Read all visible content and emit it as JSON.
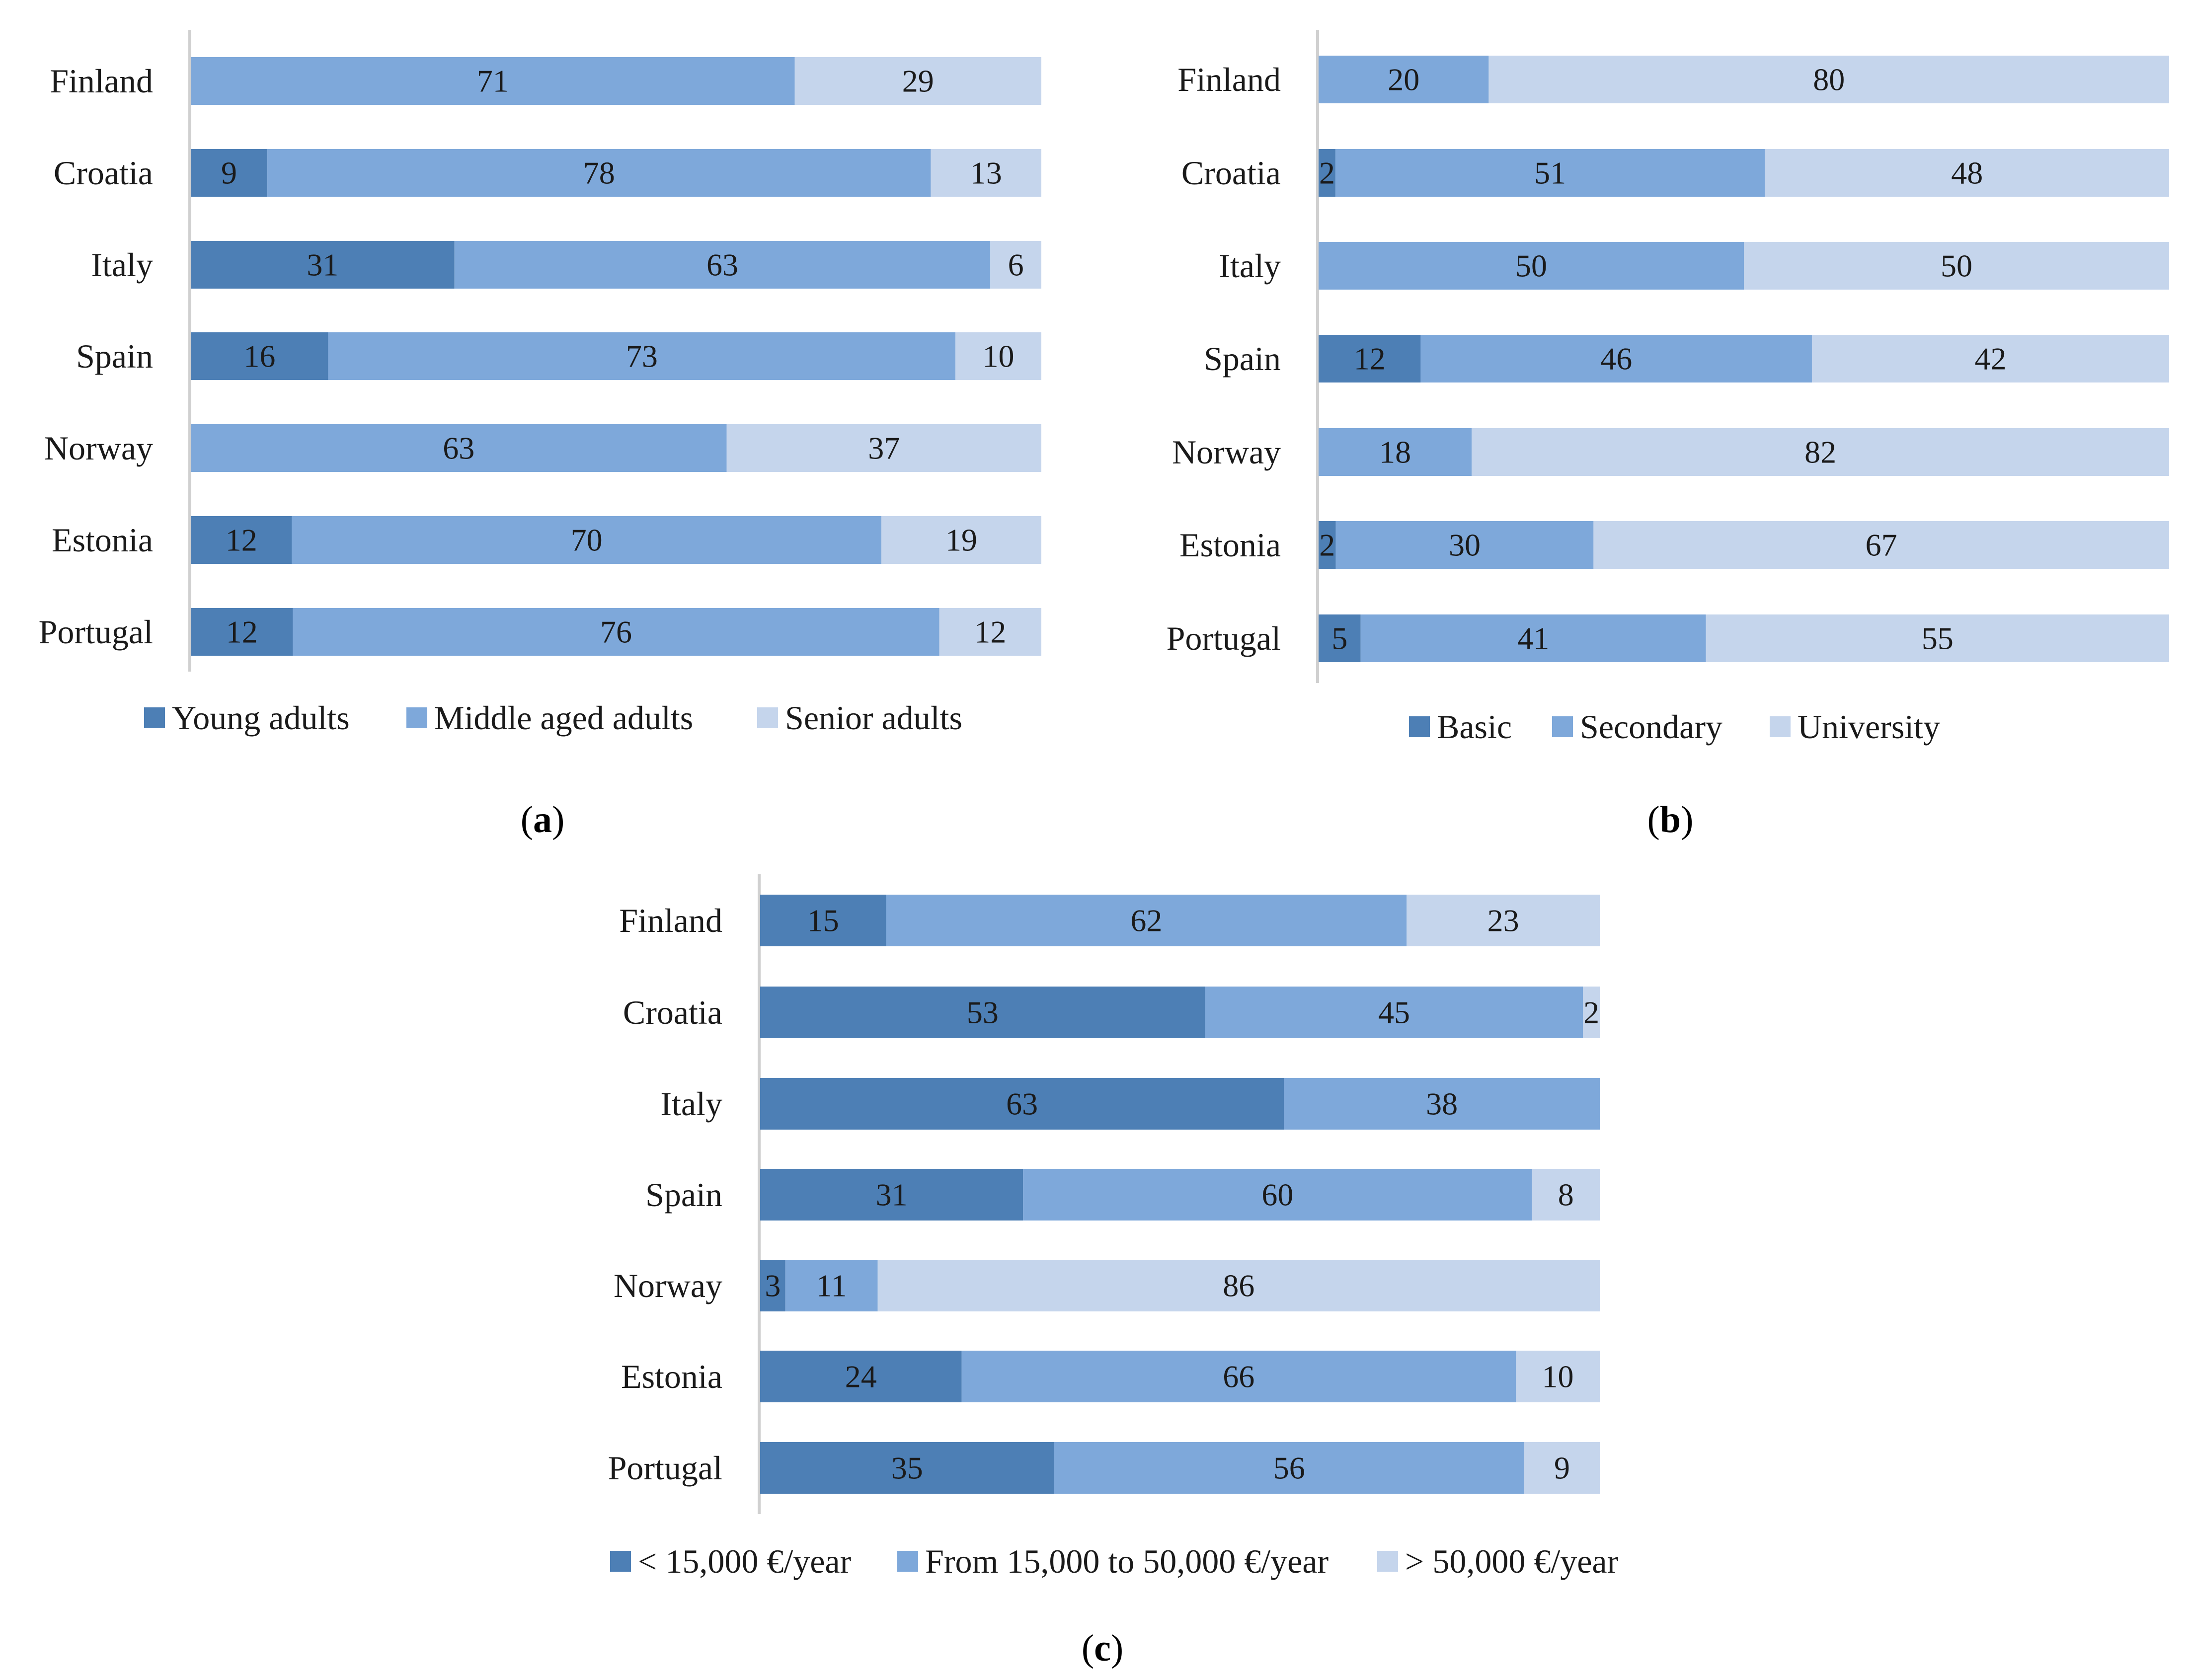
{
  "chart_data": [
    {
      "panel": "a",
      "type": "bar",
      "stacked": true,
      "orientation": "horizontal",
      "categories": [
        "Finland",
        "Croatia",
        "Italy",
        "Spain",
        "Norway",
        "Estonia",
        "Portugal"
      ],
      "series": [
        {
          "name": "Young adults",
          "color": "#4d7fb5",
          "values": [
            null,
            9,
            31,
            16,
            null,
            12,
            12
          ]
        },
        {
          "name": "Middle aged adults",
          "color": "#7ea8da",
          "values": [
            71,
            78,
            63,
            73,
            63,
            70,
            76
          ]
        },
        {
          "name": "Senior adults",
          "color": "#c5d5ec",
          "values": [
            29,
            13,
            6,
            10,
            37,
            19,
            12
          ]
        }
      ],
      "legend_position": "bottom"
    },
    {
      "panel": "b",
      "type": "bar",
      "stacked": true,
      "orientation": "horizontal",
      "categories": [
        "Finland",
        "Croatia",
        "Italy",
        "Spain",
        "Norway",
        "Estonia",
        "Portugal"
      ],
      "series": [
        {
          "name": "Basic",
          "color": "#4d7fb5",
          "values": [
            null,
            2,
            null,
            12,
            null,
            2,
            5
          ]
        },
        {
          "name": "Secondary",
          "color": "#7ea8da",
          "values": [
            20,
            51,
            50,
            46,
            18,
            30,
            41
          ]
        },
        {
          "name": "University",
          "color": "#c5d5ec",
          "values": [
            80,
            48,
            50,
            42,
            82,
            67,
            55
          ]
        }
      ],
      "legend_position": "bottom"
    },
    {
      "panel": "c",
      "type": "bar",
      "stacked": true,
      "orientation": "horizontal",
      "categories": [
        "Finland",
        "Croatia",
        "Italy",
        "Spain",
        "Norway",
        "Estonia",
        "Portugal"
      ],
      "series": [
        {
          "name": "< 15,000 €/year",
          "color": "#4d7fb5",
          "values": [
            15,
            53,
            63,
            31,
            3,
            24,
            35
          ]
        },
        {
          "name": "From 15,000 to 50,000 €/year",
          "color": "#7ea8da",
          "values": [
            62,
            45,
            38,
            60,
            11,
            66,
            56
          ]
        },
        {
          "name": "> 50,000 €/year",
          "color": "#c5d5ec",
          "values": [
            23,
            2,
            null,
            8,
            86,
            10,
            9
          ]
        }
      ],
      "legend_position": "bottom"
    }
  ]
}
